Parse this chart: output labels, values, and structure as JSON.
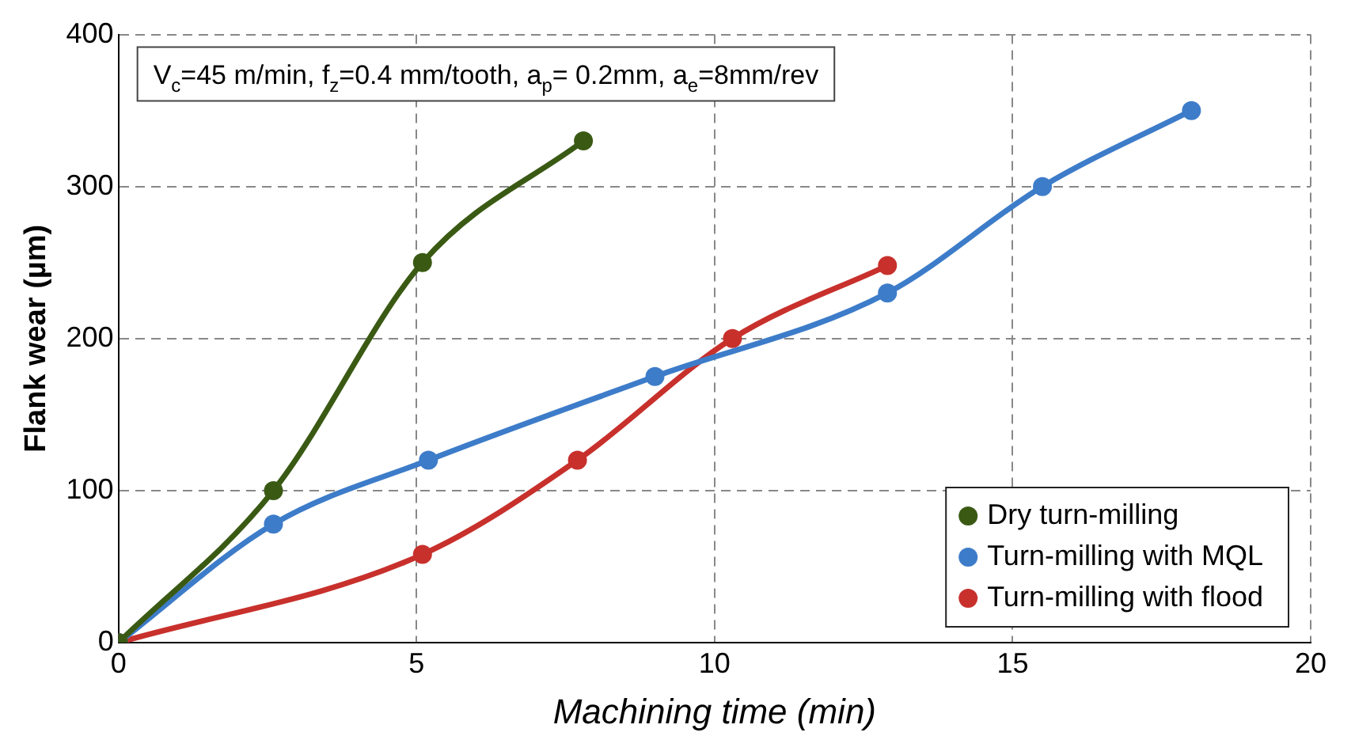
{
  "chart_data": {
    "type": "line",
    "xlabel": "Machining time (min)",
    "ylabel": "Flank wear (µm)",
    "annotations": [
      "V$_{c}$=45 m/min, f$_{z}$=0.4 mm/tooth, a$_{p}$= 0.2mm, a$_{e}$=8mm/rev"
    ],
    "series": [
      {
        "name": "Dry turn-milling",
        "color": "#3a5a14",
        "x": [
          0,
          2.6,
          5.1,
          7.8
        ],
        "values": [
          0,
          100,
          250,
          330
        ]
      },
      {
        "name": "Turn-milling with MQL",
        "color": "#3d7cc9",
        "x": [
          0,
          2.6,
          5.2,
          9,
          12.9,
          15.5,
          18
        ],
        "values": [
          0,
          78,
          120,
          175,
          230,
          300,
          350
        ]
      },
      {
        "name": "Turn-milling with flood",
        "color": "#c8302c",
        "x": [
          0,
          5.1,
          7.7,
          10.3,
          12.9
        ],
        "values": [
          0,
          58,
          120,
          200,
          248
        ]
      }
    ],
    "xlim": [
      0,
      20
    ],
    "xticks": [
      0,
      5,
      10,
      15,
      20
    ],
    "ylim": [
      0,
      400
    ],
    "yticks": [
      0,
      100,
      200,
      300,
      400
    ],
    "grid": true,
    "legend": "bottom right",
    "marker": "circle",
    "line_style": "solid"
  }
}
